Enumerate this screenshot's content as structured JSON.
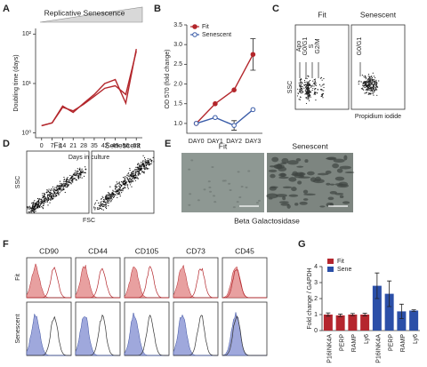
{
  "panel_labels": [
    "A",
    "B",
    "C",
    "D",
    "E",
    "F",
    "G"
  ],
  "chart_data": [
    {
      "type": "line",
      "title": "Replicative Senescence",
      "xlabel": "Days in culture",
      "ylabel": "Doubling time (days)",
      "log_y": true,
      "x": [
        0,
        7,
        14,
        21,
        28,
        35,
        42,
        49,
        56,
        63
      ],
      "xlim": [
        -4,
        67
      ],
      "xticks": [
        0,
        7,
        14,
        21,
        28,
        35,
        42,
        49,
        56,
        63
      ],
      "ylim": [
        0.8,
        130
      ],
      "yticks": [
        {
          "value": 1,
          "label": "10⁰"
        },
        {
          "value": 10,
          "label": "10¹"
        },
        {
          "value": 100,
          "label": "10²"
        }
      ],
      "series": [
        {
          "color": "#b3262b",
          "values": [
            1.4,
            1.6,
            3.5,
            2.6,
            4,
            6,
            10,
            12,
            4,
            50
          ]
        },
        {
          "color": "#b3262b",
          "values": [
            1.4,
            1.6,
            3.3,
            2.8,
            3.8,
            5.5,
            8,
            9,
            6,
            45
          ]
        }
      ]
    },
    {
      "type": "line",
      "ylabel": "OD 570 (fold change)",
      "categories": [
        "DAY0",
        "DAY1",
        "DAY2",
        "DAY3"
      ],
      "legend": "upper left",
      "ylim": [
        0.75,
        3.5
      ],
      "yticks": [
        {
          "value": 1,
          "label": "1.0"
        },
        1.5,
        {
          "value": 2,
          "label": "2.0"
        },
        2.5,
        {
          "value": 3,
          "label": "3.0"
        },
        3.5
      ],
      "series": [
        {
          "name": "Fit",
          "color": "#b3262b",
          "filled": true,
          "values": [
            1,
            1.5,
            1.85,
            2.75
          ],
          "errors": [
            null,
            null,
            null,
            0.4
          ]
        },
        {
          "name": "Senescent",
          "color": "#3a5ca8",
          "filled": false,
          "values": [
            1,
            1.15,
            0.95,
            1.35
          ],
          "errors": [
            null,
            null,
            0.12,
            null
          ]
        }
      ]
    },
    {
      "type": "bar",
      "ylabel": "Fold change / GAPDH",
      "categories": [
        "P16INK4A",
        "PERP",
        "RAMP",
        "Ly6",
        "P16INK4A",
        "PERP",
        "RAMP",
        "Ly6"
      ],
      "legend": "upper left",
      "ylim": [
        0,
        4
      ],
      "yticks": [
        0,
        1,
        2,
        3,
        4
      ],
      "series": [
        {
          "name": "Fit",
          "color": "#b5262e",
          "values": [
            1,
            0.95,
            1,
            1,
            null,
            null,
            null,
            null
          ],
          "errors": [
            0.1,
            0.08,
            0.07,
            0.08,
            null,
            null,
            null,
            null
          ]
        },
        {
          "name": "Sene",
          "color": "#2b4fa8",
          "values": [
            null,
            null,
            null,
            null,
            2.8,
            2.3,
            1.2,
            1.25
          ],
          "errors": [
            null,
            null,
            null,
            null,
            0.8,
            0.8,
            0.45,
            0.05
          ]
        }
      ]
    }
  ],
  "panel_c": {
    "columns": [
      "Fit",
      "Senescent"
    ],
    "ylabel": "SSC",
    "xlabel": "Propidium iodide",
    "gates_fit": [
      "Apo",
      "G0/G1",
      "S",
      "G2/M"
    ],
    "gate_senescent": "G0/G1"
  },
  "panel_d": {
    "columns": [
      "Fit",
      "Senescent"
    ],
    "ylabel": "SSC",
    "xlabel": "FSC"
  },
  "panel_e": {
    "columns": [
      "Fit",
      "Senescent"
    ],
    "caption": "Beta Galactosidase"
  },
  "panel_f": {
    "markers": [
      "CD90",
      "CD44",
      "CD105",
      "CD73",
      "CD45"
    ],
    "rows": [
      "Fit",
      "Senescent"
    ]
  }
}
